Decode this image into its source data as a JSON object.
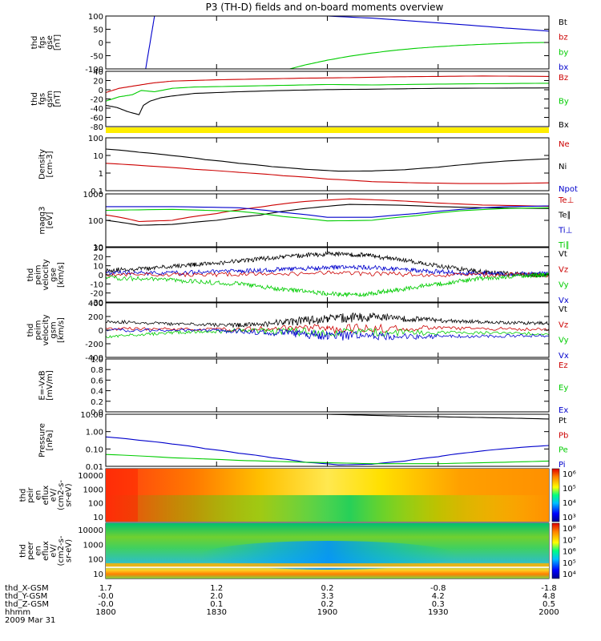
{
  "title": "P3 (TH-D) fields and on-board moments overview",
  "colors": {
    "black": "#000000",
    "red": "#cc0000",
    "green": "#00cc00",
    "blue": "#0000cc",
    "yellow": "#ffee00"
  },
  "chart_data": [
    {
      "id": "panel-fgs-gse",
      "type": "line",
      "ylabel": [
        "thd",
        "fgs",
        "gse",
        "[nT]"
      ],
      "yticks": [
        "100",
        "50",
        "0",
        "-50",
        "-100"
      ],
      "ylim": [
        -100,
        100
      ],
      "legend": [
        {
          "name": "Bt",
          "color": "black"
        },
        {
          "name": "bz",
          "color": "red"
        },
        {
          "name": "by",
          "color": "green"
        },
        {
          "name": "bx",
          "color": "blue"
        }
      ],
      "series": [
        {
          "name": "bx",
          "color": "blue",
          "x": [
            1800,
            1815,
            1818,
            1821,
            1822,
            1840,
            1860,
            1880,
            1900,
            1920,
            1940,
            1960,
            1980,
            2000
          ],
          "y": [
            null,
            null,
            -100,
            50,
            100,
            100,
            100,
            100,
            100,
            92,
            80,
            68,
            55,
            43
          ]
        },
        {
          "name": "by",
          "color": "green",
          "x": [
            1800,
            1883,
            1890,
            1900,
            1910,
            1920,
            1930,
            1940,
            1950,
            1960,
            1970,
            1980,
            1990,
            2000
          ],
          "y": [
            null,
            -100,
            -85,
            -67,
            -52,
            -40,
            -30,
            -22,
            -16,
            -11,
            -7,
            -4,
            -1,
            0
          ]
        }
      ]
    },
    {
      "id": "panel-fgs-gsm",
      "type": "line",
      "ylabel": [
        "thd",
        "fgs",
        "gsm",
        "[nT]"
      ],
      "yticks": [
        "40",
        "20",
        "0",
        "-20",
        "-40",
        "-60",
        "-80"
      ],
      "ylim": [
        -90,
        40
      ],
      "legend": [
        {
          "name": "Bz",
          "color": "red"
        },
        {
          "name": "By",
          "color": "green"
        },
        {
          "name": "Bx",
          "color": "black"
        }
      ],
      "series": [
        {
          "name": "Bz",
          "color": "red",
          "x": [
            1800,
            1806,
            1812,
            1818,
            1822,
            1830,
            1850,
            1870,
            1890,
            1910,
            1930,
            1950,
            1970,
            2000
          ],
          "y": [
            -10,
            0,
            5,
            10,
            13,
            17,
            20,
            22,
            24,
            25,
            27,
            28,
            29,
            28
          ]
        },
        {
          "name": "By",
          "color": "green",
          "x": [
            1800,
            1806,
            1812,
            1816,
            1822,
            1830,
            1840,
            1860,
            1880,
            1900,
            1920,
            1950,
            1975,
            2000
          ],
          "y": [
            -30,
            -20,
            -15,
            -5,
            -8,
            0,
            3,
            5,
            7,
            9,
            8,
            10,
            11,
            12
          ]
        },
        {
          "name": "Bx",
          "color": "black",
          "x": [
            1800,
            1805,
            1810,
            1815,
            1817,
            1820,
            1825,
            1830,
            1840,
            1860,
            1880,
            1900,
            1920,
            1950,
            2000
          ],
          "y": [
            -40,
            -45,
            -55,
            -62,
            -40,
            -30,
            -22,
            -18,
            -12,
            -8,
            -5,
            -3,
            -2,
            0,
            1
          ]
        }
      ]
    },
    {
      "id": "panel-density",
      "type": "line",
      "log": true,
      "ylabel": [
        "Density",
        "[cm-3]"
      ],
      "yticks": [
        "100",
        "10",
        "1",
        "0.1"
      ],
      "ylim": [
        0.03,
        100
      ],
      "legend": [
        {
          "name": "Ne",
          "color": "red"
        },
        {
          "name": "Ni",
          "color": "black"
        },
        {
          "name": "Npot",
          "color": "blue"
        }
      ],
      "series": [
        {
          "name": "Ni",
          "color": "black",
          "x": [
            1800,
            1815,
            1830,
            1845,
            1860,
            1875,
            1890,
            1905,
            1920,
            1935,
            1950,
            1965,
            1980,
            2000
          ],
          "y": [
            18,
            11,
            6.5,
            3.5,
            2,
            1.2,
            0.8,
            0.6,
            0.62,
            0.75,
            1.1,
            1.8,
            2.8,
            4
          ]
        },
        {
          "name": "Ne",
          "color": "red",
          "x": [
            1800,
            1820,
            1840,
            1860,
            1880,
            1900,
            1920,
            1940,
            1960,
            1980,
            2000
          ],
          "y": [
            2,
            1.3,
            0.8,
            0.5,
            0.3,
            0.18,
            0.12,
            0.1,
            0.09,
            0.09,
            0.1
          ]
        }
      ]
    },
    {
      "id": "panel-mag",
      "type": "line",
      "log": true,
      "ylabel": [
        "magq3",
        "[eV]"
      ],
      "yticks": [
        "1000",
        "100",
        "10"
      ],
      "ylim": [
        10,
        1000
      ],
      "legend": [
        {
          "name": "Te⊥",
          "color": "red"
        },
        {
          "name": "Te∥",
          "color": "black"
        },
        {
          "name": "Ti⊥",
          "color": "blue"
        },
        {
          "name": "Ti∥",
          "color": "green"
        }
      ],
      "series": [
        {
          "name": "Te∥",
          "color": "black",
          "x": [
            1800,
            1815,
            1830,
            1850,
            1870,
            1890,
            1910,
            1930,
            1950,
            1970,
            2000
          ],
          "y": [
            100,
            65,
            70,
            100,
            160,
            280,
            400,
            380,
            330,
            300,
            280
          ]
        },
        {
          "name": "Te⊥",
          "color": "red",
          "x": [
            1800,
            1815,
            1830,
            1850,
            1870,
            1890,
            1910,
            1930,
            1950,
            1970,
            2000
          ],
          "y": [
            160,
            90,
            100,
            180,
            320,
            520,
            650,
            560,
            450,
            380,
            340
          ]
        },
        {
          "name": "Ti⊥",
          "color": "blue",
          "x": [
            1800,
            1830,
            1860,
            1880,
            1900,
            1920,
            1940,
            1960,
            1980,
            2000
          ],
          "y": [
            330,
            330,
            300,
            200,
            130,
            130,
            180,
            260,
            330,
            350
          ]
        },
        {
          "name": "Ti∥",
          "color": "green",
          "x": [
            1800,
            1830,
            1860,
            1880,
            1900,
            1920,
            1940,
            1960,
            1980,
            2000
          ],
          "y": [
            240,
            260,
            220,
            140,
            95,
            100,
            150,
            230,
            280,
            300
          ]
        }
      ]
    },
    {
      "id": "panel-peim-gse",
      "type": "line",
      "ylabel": [
        "thd",
        "peim",
        "velocity",
        "gse",
        "[km/s]"
      ],
      "yticks": [
        "30",
        "20",
        "10",
        "0",
        "-10",
        "-20",
        "-30"
      ],
      "ylim": [
        -30,
        30
      ],
      "legend": [
        {
          "name": "Vt",
          "color": "black"
        },
        {
          "name": "Vz",
          "color": "red"
        },
        {
          "name": "Vy",
          "color": "green"
        },
        {
          "name": "Vx",
          "color": "blue"
        }
      ],
      "series": [
        {
          "name": "Vt",
          "color": "black",
          "x": [
            1800,
            1820,
            1840,
            1860,
            1880,
            1900,
            1915,
            1930,
            1950,
            1970,
            1990,
            2000
          ],
          "y": [
            5,
            7,
            11,
            15,
            20,
            23,
            22,
            18,
            10,
            3,
            0,
            0
          ]
        },
        {
          "name": "Vx",
          "color": "blue",
          "x": [
            1800,
            1830,
            1860,
            1880,
            1900,
            1920,
            1940,
            1960,
            1980,
            2000
          ],
          "y": [
            2,
            2,
            4,
            6,
            8,
            8,
            5,
            2,
            1,
            1
          ]
        },
        {
          "name": "Vz",
          "color": "red",
          "x": [
            1800,
            1850,
            1900,
            1950,
            2000
          ],
          "y": [
            0,
            0,
            2,
            0,
            0
          ]
        },
        {
          "name": "Vy",
          "color": "green",
          "x": [
            1800,
            1830,
            1860,
            1880,
            1900,
            1915,
            1930,
            1950,
            1970,
            1990,
            2000
          ],
          "y": [
            -3,
            -6,
            -10,
            -16,
            -21,
            -22,
            -17,
            -10,
            -4,
            -1,
            0
          ]
        }
      ]
    },
    {
      "id": "panel-peim-gsm",
      "type": "line",
      "ylabel": [
        "thd",
        "peim",
        "velocity",
        "gsm",
        "[km/s]"
      ],
      "yticks": [
        "400",
        "200",
        "0",
        "-200",
        "-400"
      ],
      "ylim": [
        -400,
        400
      ],
      "legend": [
        {
          "name": "Vt",
          "color": "black"
        },
        {
          "name": "Vz",
          "color": "red"
        },
        {
          "name": "Vy",
          "color": "green"
        },
        {
          "name": "Vx",
          "color": "blue"
        }
      ],
      "series": [
        {
          "name": "Vt",
          "color": "black",
          "x": [
            1800,
            1830,
            1860,
            1880,
            1900,
            1920,
            1940,
            1960,
            1980,
            2000
          ],
          "y": [
            130,
            90,
            70,
            110,
            170,
            190,
            160,
            130,
            110,
            100
          ]
        },
        {
          "name": "Vz",
          "color": "red",
          "x": [
            1800,
            1850,
            1900,
            1950,
            2000
          ],
          "y": [
            20,
            10,
            20,
            30,
            10
          ]
        },
        {
          "name": "Vy",
          "color": "green",
          "x": [
            1800,
            1830,
            1860,
            1900,
            1950,
            2000
          ],
          "y": [
            -100,
            -40,
            -10,
            -30,
            -40,
            -50
          ]
        },
        {
          "name": "Vx",
          "color": "blue",
          "x": [
            1800,
            1850,
            1880,
            1900,
            1930,
            1960,
            2000
          ],
          "y": [
            0,
            -10,
            -40,
            -80,
            -100,
            -90,
            -80
          ]
        }
      ]
    },
    {
      "id": "panel-efield",
      "type": "line",
      "ylabel": [
        "E=-VxB",
        "[mV/m]"
      ],
      "yticks": [
        "1.0",
        "0.8",
        "0.6",
        "0.4",
        "0.2",
        "0.0"
      ],
      "ylim": [
        0,
        1
      ],
      "legend": [
        {
          "name": "Ez",
          "color": "red"
        },
        {
          "name": "Ey",
          "color": "green"
        },
        {
          "name": "Ex",
          "color": "blue"
        }
      ],
      "series": []
    },
    {
      "id": "panel-pressure",
      "type": "line",
      "log": true,
      "ylabel": [
        "Pressure",
        "[nPa]"
      ],
      "yticks": [
        "10.00",
        "1.00",
        "0.10",
        "0.01"
      ],
      "ylim": [
        0.008,
        25
      ],
      "legend": [
        {
          "name": "Pt",
          "color": "black"
        },
        {
          "name": "Pb",
          "color": "red"
        },
        {
          "name": "Pe",
          "color": "green"
        },
        {
          "name": "Pi",
          "color": "blue"
        }
      ],
      "series": [
        {
          "name": "Pt",
          "color": "black",
          "x": [
            1900,
            1920,
            1940,
            1960,
            1980,
            2000
          ],
          "y": [
            25,
            21,
            18,
            16,
            14,
            12
          ]
        },
        {
          "name": "Pi",
          "color": "blue",
          "x": [
            1800,
            1815,
            1830,
            1845,
            1860,
            1875,
            1890,
            1905,
            1920,
            1935,
            1950,
            1965,
            1980,
            2000
          ],
          "y": [
            0.75,
            0.45,
            0.25,
            0.12,
            0.06,
            0.03,
            0.015,
            0.01,
            0.011,
            0.018,
            0.035,
            0.07,
            0.12,
            0.2
          ]
        },
        {
          "name": "Pe",
          "color": "green",
          "x": [
            1800,
            1830,
            1860,
            1890,
            1920,
            1950,
            1980,
            2000
          ],
          "y": [
            0.05,
            0.03,
            0.02,
            0.015,
            0.012,
            0.012,
            0.015,
            0.018
          ]
        }
      ]
    },
    {
      "id": "panel-peir",
      "type": "heatmap",
      "ylabel": [
        "thd",
        "peir",
        "en",
        "eflux",
        "eV/",
        "(cm2-s-",
        "sr-eV)"
      ],
      "yticks": [
        "10000",
        "1000",
        "100",
        "10"
      ],
      "colorbar": [
        "10⁶",
        "10⁵",
        "10⁴",
        "10³"
      ]
    },
    {
      "id": "panel-peer",
      "type": "heatmap",
      "ylabel": [
        "thd",
        "peer",
        "en",
        "eflux",
        "eV/",
        "(cm2-s-",
        "sr-eV)"
      ],
      "yticks": [
        "10000",
        "1000",
        "100",
        "10"
      ],
      "colorbar": [
        "10⁸",
        "10⁷",
        "10⁶",
        "10⁵",
        "10⁴"
      ]
    }
  ],
  "x_axis": {
    "rows": [
      {
        "label": "thd_X-GSM",
        "values": [
          "1.7",
          "1.2",
          "0.2",
          "-0.8",
          "-1.8"
        ]
      },
      {
        "label": "thd_Y-GSM",
        "values": [
          "-0.0",
          "2.0",
          "3.3",
          "4.2",
          "4.8"
        ]
      },
      {
        "label": "thd_Z-GSM",
        "values": [
          "-0.0",
          "0.1",
          "0.2",
          "0.3",
          "0.5"
        ]
      },
      {
        "label": "hhmm",
        "values": [
          "1800",
          "1830",
          "1900",
          "1930",
          "2000"
        ]
      }
    ],
    "date": "2009 Mar 31"
  }
}
